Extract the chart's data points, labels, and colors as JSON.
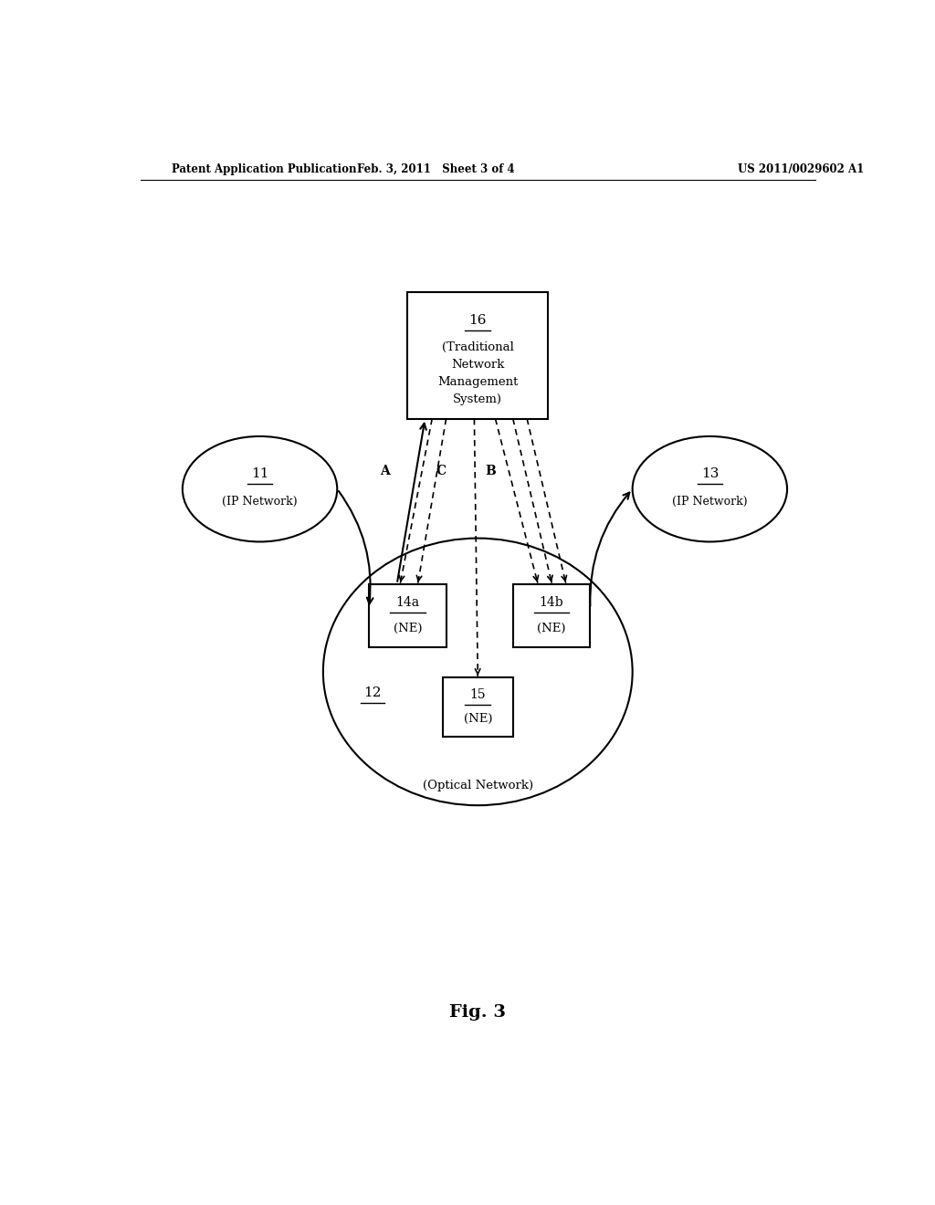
{
  "bg_color": "#ffffff",
  "header_left": "Patent Application Publication",
  "header_mid": "Feb. 3, 2011   Sheet 3 of 4",
  "header_right": "US 2011/0029602 A1",
  "fig_label": "Fig. 3",
  "optical_label": "(Optical Network)"
}
